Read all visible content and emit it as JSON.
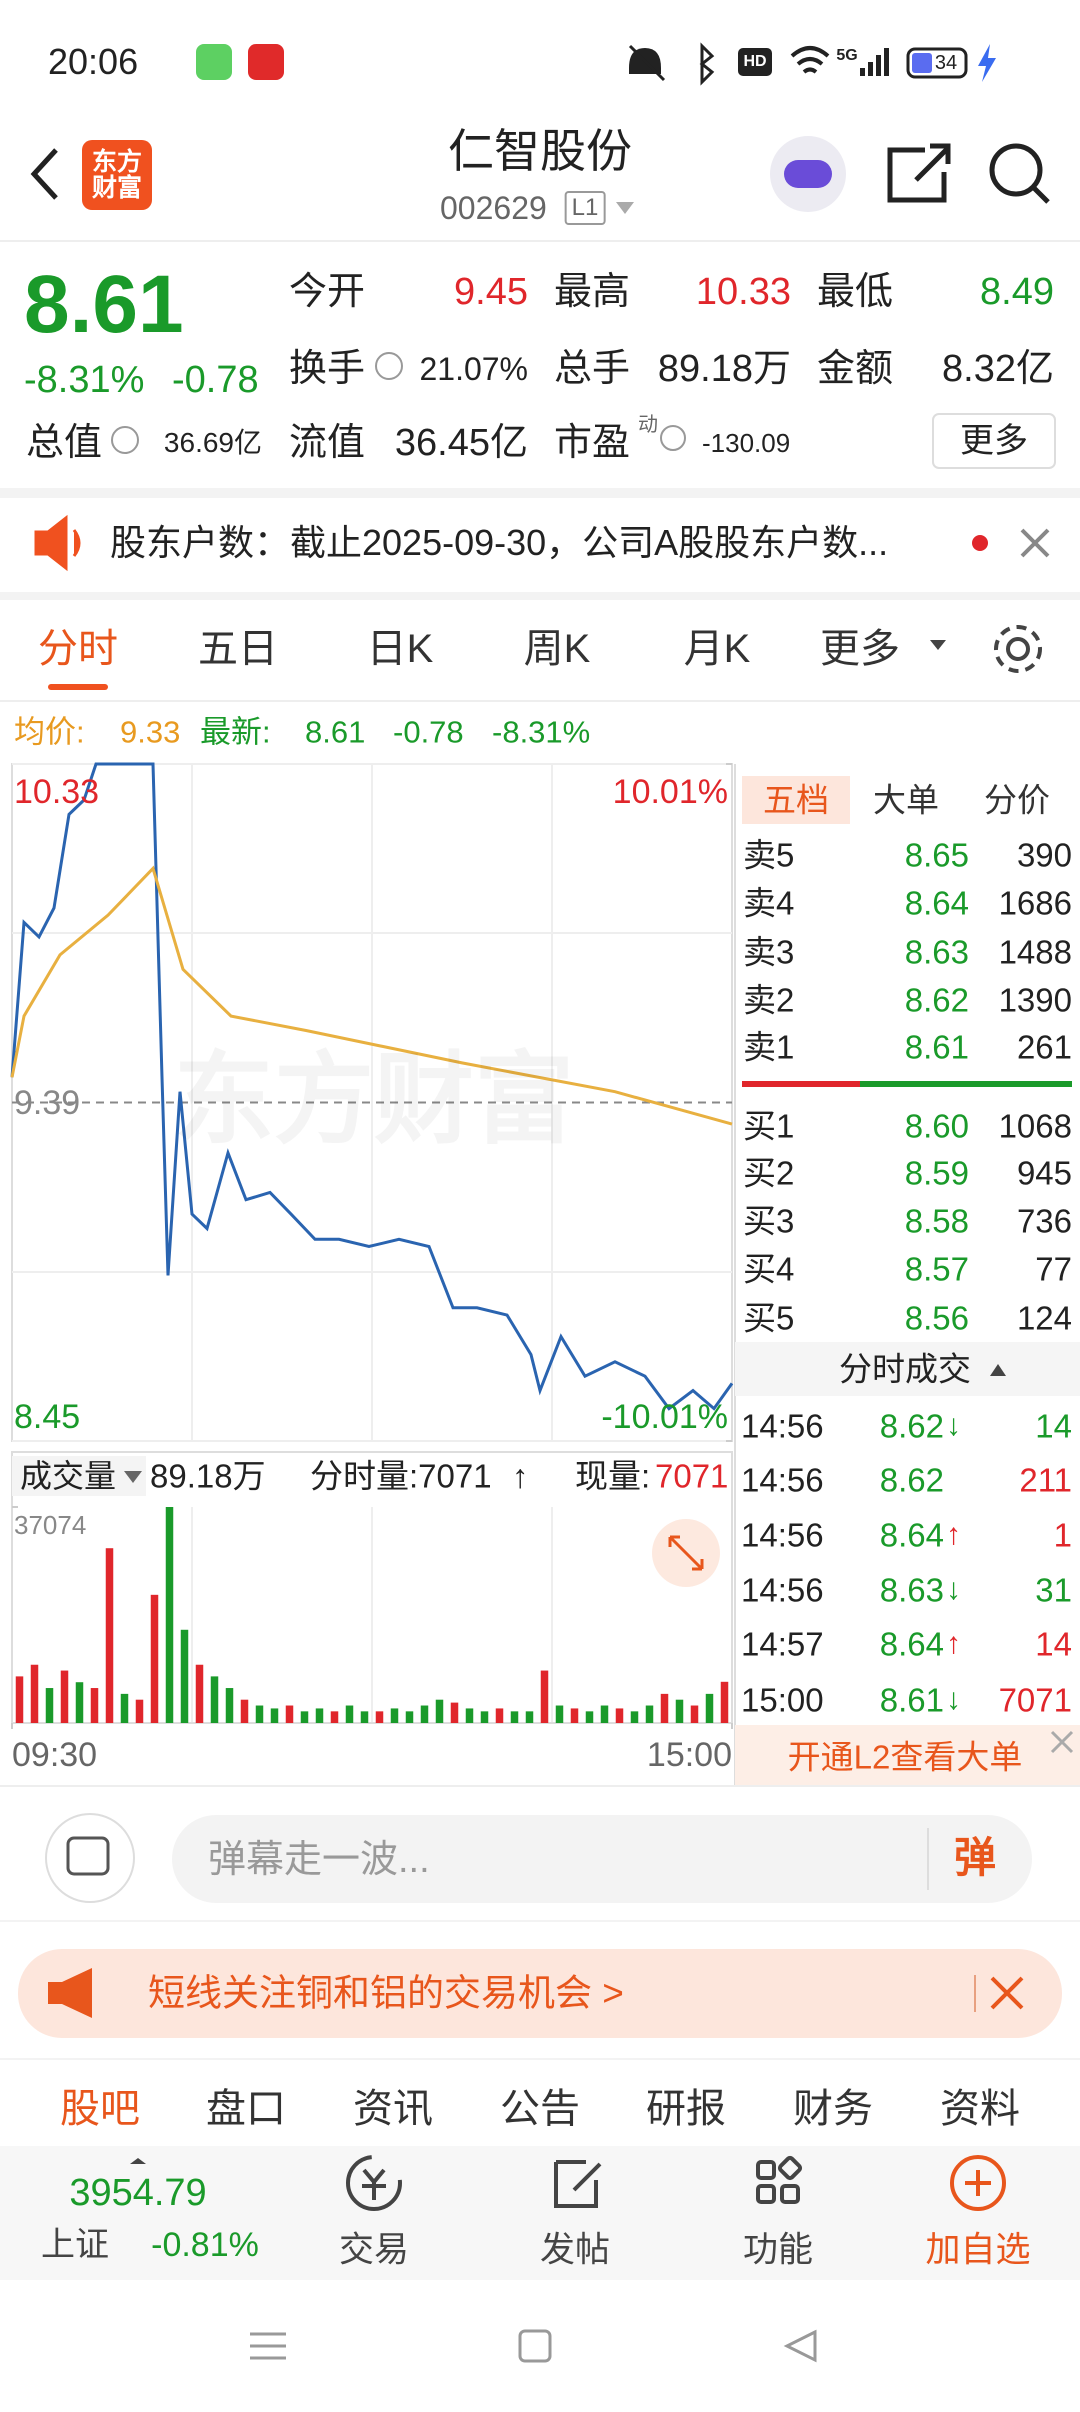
{
  "status_bar": {
    "time": "20:06",
    "hd": "HD",
    "net": "5G",
    "battery": "34"
  },
  "header": {
    "logo": "东方财富",
    "title": "仁智股份",
    "code": "002629",
    "level": "L1"
  },
  "quote": {
    "price": "8.61",
    "change_pct": "-8.31%",
    "change": "-0.78",
    "stats": [
      {
        "label": "今开",
        "value": "9.45"
      },
      {
        "label": "最高",
        "value": "10.33"
      },
      {
        "label": "最低",
        "value": "8.49"
      },
      {
        "label": "换手",
        "value": "21.07%"
      },
      {
        "label": "总手",
        "value": "89.18万"
      },
      {
        "label": "金额",
        "value": "8.32亿"
      },
      {
        "label": "总值",
        "value": "36.69亿"
      },
      {
        "label": "流值",
        "value": "36.45亿"
      },
      {
        "label": "市盈",
        "sup": "动",
        "value": "-130.09"
      }
    ],
    "more": "更多"
  },
  "notice": "股东户数：截止2025-09-30，公司A股股东户数...",
  "tabs": [
    "分时",
    "五日",
    "日K",
    "周K",
    "月K",
    "更多"
  ],
  "summary": {
    "avg_label": "均价:",
    "avg": "9.33",
    "latest_label": "最新:",
    "latest": "8.61",
    "change": "-0.78",
    "pct": "-8.31%"
  },
  "watermark": "东方财富",
  "chart_data": [
    {
      "type": "line",
      "xlim": [
        0,
        240
      ],
      "ylim": [
        8.45,
        10.33
      ],
      "yticks": [
        10.33,
        9.39,
        8.45
      ],
      "y2lim": [
        -10.01,
        10.01
      ],
      "y2ticks": [
        {
          "value": 10.01,
          "label": "10.01%"
        },
        {
          "value": -10.01,
          "label": "-10.01%"
        }
      ],
      "series": [
        {
          "color": "#2a64b0",
          "x": [
            0,
            4,
            9,
            14,
            19,
            24,
            28,
            32,
            47,
            50,
            52,
            56,
            60,
            65,
            72,
            78,
            86,
            93,
            101,
            109,
            119,
            129,
            139,
            147,
            155,
            165,
            173,
            176,
            183,
            191,
            201,
            211,
            219,
            227,
            234,
            240
          ],
          "values": [
            9.46,
            9.89,
            9.85,
            9.93,
            10.19,
            10.23,
            10.33,
            10.33,
            10.33,
            9.46,
            8.91,
            9.42,
            9.08,
            9.04,
            9.25,
            9.12,
            9.14,
            9.08,
            9.01,
            9.01,
            8.99,
            9.01,
            8.99,
            8.82,
            8.82,
            8.8,
            8.69,
            8.59,
            8.74,
            8.63,
            8.67,
            8.63,
            8.54,
            8.59,
            8.54,
            8.61
          ]
        },
        {
          "color": "#e8b040",
          "x": [
            0,
            4,
            16,
            32,
            47,
            57,
            73,
            98,
            150,
            201,
            240
          ],
          "values": [
            9.46,
            9.63,
            9.8,
            9.91,
            10.04,
            9.76,
            9.63,
            9.59,
            9.5,
            9.42,
            9.33
          ]
        }
      ]
    },
    {
      "type": "bar",
      "xlim": [
        0,
        240
      ],
      "ylim": [
        0,
        37074
      ],
      "yticks": [
        37074
      ],
      "xticks": [
        {
          "value": 0,
          "label": "09:30"
        },
        {
          "value": 240,
          "label": "15:00"
        }
      ],
      "values": [
        8000,
        10000,
        6000,
        9000,
        7000,
        6000,
        30000,
        5000,
        4000,
        22000,
        37074,
        16000,
        10000,
        8000,
        6000,
        4000,
        3000,
        2500,
        3000,
        2000,
        2500,
        2000,
        3000,
        2000,
        2000,
        2500,
        2000,
        3000,
        4000,
        3500,
        2500,
        2000,
        2500,
        2000,
        2000,
        9000,
        3000,
        2500,
        2000,
        3000,
        2500,
        2000,
        3000,
        5000,
        4000,
        3000,
        5000,
        7071
      ],
      "colors": [
        "#e0262b",
        "#e0262b",
        "#1a9a2a",
        "#e0262b",
        "#1a9a2a",
        "#e0262b",
        "#e0262b",
        "#1a9a2a",
        "#e0262b",
        "#e0262b",
        "#1a9a2a",
        "#1a9a2a",
        "#e0262b",
        "#1a9a2a",
        "#1a9a2a",
        "#e0262b",
        "#1a9a2a",
        "#1a9a2a",
        "#e0262b",
        "#1a9a2a",
        "#1a9a2a",
        "#e0262b",
        "#1a9a2a",
        "#1a9a2a",
        "#e0262b",
        "#1a9a2a",
        "#1a9a2a",
        "#1a9a2a",
        "#1a9a2a",
        "#e0262b",
        "#1a9a2a",
        "#1a9a2a",
        "#e0262b",
        "#1a9a2a",
        "#1a9a2a",
        "#e0262b",
        "#1a9a2a",
        "#e0262b",
        "#1a9a2a",
        "#1a9a2a",
        "#e0262b",
        "#1a9a2a",
        "#1a9a2a",
        "#e0262b",
        "#1a9a2a",
        "#e0262b",
        "#1a9a2a",
        "#e0262b"
      ]
    }
  ],
  "volume_header": {
    "label": "成交量",
    "total": "89.18万",
    "period": "分时量:7071",
    "period_arrow": "↑",
    "current_label": "现量:",
    "current": "7071"
  },
  "order_book": {
    "tabs": [
      "五档",
      "大单",
      "分价"
    ],
    "sells": [
      {
        "label": "卖5",
        "price": "8.65",
        "volume": "390"
      },
      {
        "label": "卖4",
        "price": "8.64",
        "volume": "1686"
      },
      {
        "label": "卖3",
        "price": "8.63",
        "volume": "1488"
      },
      {
        "label": "卖2",
        "price": "8.62",
        "volume": "1390"
      },
      {
        "label": "卖1",
        "price": "8.61",
        "volume": "261"
      }
    ],
    "buys": [
      {
        "label": "买1",
        "price": "8.60",
        "volume": "1068"
      },
      {
        "label": "买2",
        "price": "8.59",
        "volume": "945"
      },
      {
        "label": "买3",
        "price": "8.58",
        "volume": "736"
      },
      {
        "label": "买4",
        "price": "8.57",
        "volume": "77"
      },
      {
        "label": "买5",
        "price": "8.56",
        "volume": "124"
      }
    ],
    "trades_title": "分时成交",
    "trades": [
      {
        "time": "14:56",
        "price": "8.62",
        "arrow": "↓",
        "volume": "14",
        "color": "#1a9a2a"
      },
      {
        "time": "14:56",
        "price": "8.62",
        "arrow": "",
        "volume": "211",
        "color": "#e0262b"
      },
      {
        "time": "14:56",
        "price": "8.64",
        "arrow": "↑",
        "volume": "1",
        "color": "#e0262b"
      },
      {
        "time": "14:56",
        "price": "8.63",
        "arrow": "↓",
        "volume": "31",
        "color": "#1a9a2a"
      },
      {
        "time": "14:57",
        "price": "8.64",
        "arrow": "↑",
        "volume": "14",
        "color": "#e0262b"
      },
      {
        "time": "15:00",
        "price": "8.61",
        "arrow": "↓",
        "volume": "7071",
        "color": "#e0262b"
      }
    ],
    "l2": "开通L2查看大单"
  },
  "comment": {
    "placeholder": "弹幕走一波...",
    "button": "弹"
  },
  "ad": "短线关注铜和铝的交易机会 >",
  "section_tabs": [
    "股吧",
    "盘口",
    "资讯",
    "公告",
    "研报",
    "财务",
    "资料"
  ],
  "index": {
    "value": "3954.79",
    "name": "上证",
    "pct": "-0.81%"
  },
  "nav": [
    "交易",
    "发帖",
    "功能",
    "加自选"
  ]
}
